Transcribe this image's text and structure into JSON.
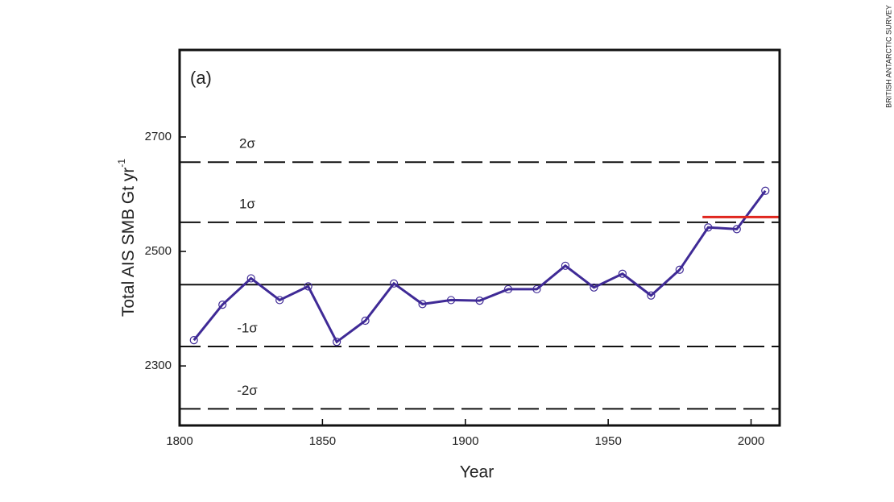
{
  "chart_data": {
    "type": "line",
    "panel_label": "(a)",
    "x_label": "Year",
    "y_label": "Total AIS SMB Gt yr",
    "y_label_sup": "-1",
    "credit": "BRITISH ANTARCTIC SURVEY",
    "xlim": [
      1800,
      2010
    ],
    "xticks": [
      1800,
      1850,
      1900,
      1950,
      2000
    ],
    "ylim": [
      2196,
      2852
    ],
    "yticks": [
      2300,
      2500,
      2700
    ],
    "reference_lines": [
      {
        "value": 2442,
        "style": "solid"
      },
      {
        "value": 2656,
        "style": "dashed",
        "label": "2σ"
      },
      {
        "value": 2551,
        "style": "dashed",
        "label": "1σ"
      },
      {
        "value": 2334,
        "style": "dashed",
        "label": "-1σ"
      },
      {
        "value": 2225,
        "style": "dashed",
        "label": "-2σ"
      }
    ],
    "series": [
      {
        "color": "#3f2a96",
        "marker": "circle",
        "x": [
          1805,
          1815,
          1825,
          1835,
          1845,
          1855,
          1865,
          1875,
          1885,
          1895,
          1905,
          1915,
          1925,
          1935,
          1945,
          1955,
          1965,
          1975,
          1985,
          1995,
          2005
        ],
        "values": [
          2345,
          2407,
          2453,
          2415,
          2439,
          2342,
          2379,
          2444,
          2408,
          2415,
          2414,
          2434,
          2434,
          2475,
          2437,
          2461,
          2423,
          2468,
          2542,
          2539,
          2606
        ]
      },
      {
        "color": "#e0261e",
        "marker": "none",
        "x": [
          1983,
          2010
        ],
        "values": [
          2560,
          2560
        ]
      }
    ]
  }
}
